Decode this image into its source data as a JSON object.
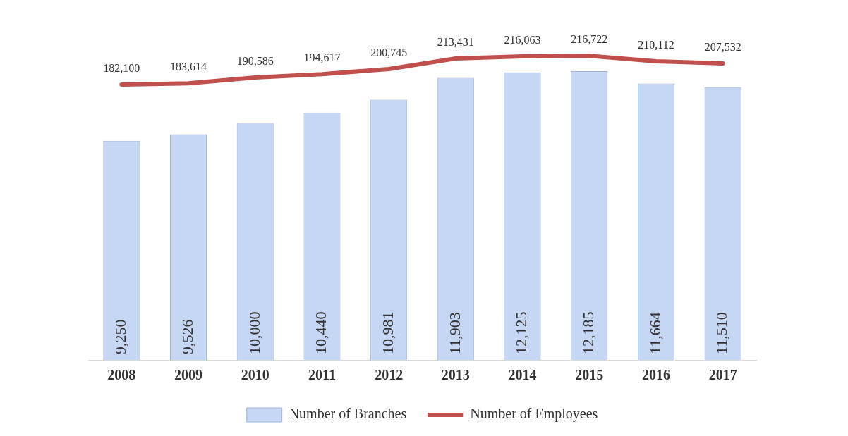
{
  "chart_data": {
    "type": "bar",
    "categories": [
      "2008",
      "2009",
      "2010",
      "2011",
      "2012",
      "2013",
      "2014",
      "2015",
      "2016",
      "2017"
    ],
    "series": [
      {
        "name": "Number of Branches",
        "color": "#c6d7f4",
        "values": [
          9250,
          9526,
          10000,
          10440,
          10981,
          11903,
          12125,
          12185,
          11664,
          11510
        ],
        "value_labels": [
          "9,250",
          "9,526",
          "10,000",
          "10,440",
          "10,981",
          "11,903",
          "12,125",
          "12,185",
          "11,664",
          "11,510"
        ]
      },
      {
        "name": "Number of Employees",
        "type": "line",
        "axis": "y2",
        "color": "#c0504d",
        "values": [
          182100,
          183614,
          190586,
          194617,
          200745,
          213431,
          216063,
          216722,
          210112,
          207532
        ],
        "value_labels": [
          "182,100",
          "183,614",
          "190,586",
          "194,617",
          "200,745",
          "213,431",
          "216,063",
          "216,722",
          "210,112",
          "207,532"
        ]
      }
    ],
    "legend": "bottom",
    "tick_labels": "x",
    "marker": "none"
  }
}
